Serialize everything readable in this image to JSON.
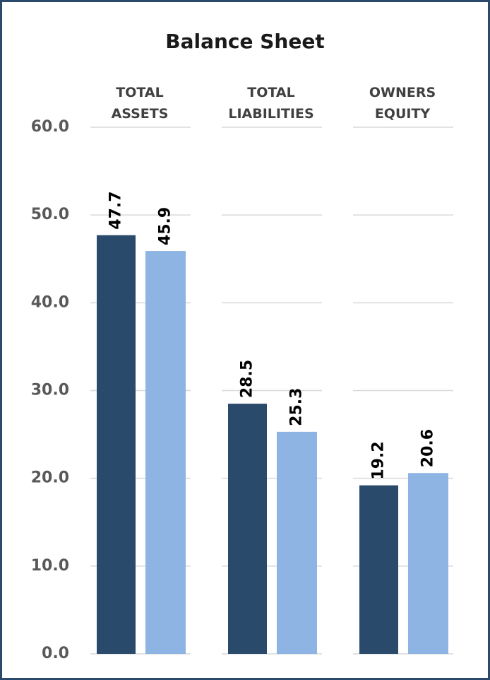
{
  "chart_data": {
    "type": "bar",
    "title": "Balance Sheet",
    "categories": [
      "TOTAL ASSETS",
      "TOTAL LIABILITIES",
      "OWNERS EQUITY"
    ],
    "series": [
      {
        "color": "#2a4a6b",
        "values": [
          47.7,
          28.5,
          19.2
        ]
      },
      {
        "color": "#8eb4e3",
        "values": [
          45.9,
          25.3,
          20.6
        ]
      }
    ],
    "ylim": [
      0,
      60
    ],
    "yticks": [
      {
        "value": 0,
        "label": "0.0"
      },
      {
        "value": 10,
        "label": "10.0"
      },
      {
        "value": 20,
        "label": "20.0"
      },
      {
        "value": 30,
        "label": "30.0"
      },
      {
        "value": 40,
        "label": "40.0"
      },
      {
        "value": 50,
        "label": "50.0"
      },
      {
        "value": 60,
        "label": "60.0"
      }
    ],
    "grid": true
  }
}
